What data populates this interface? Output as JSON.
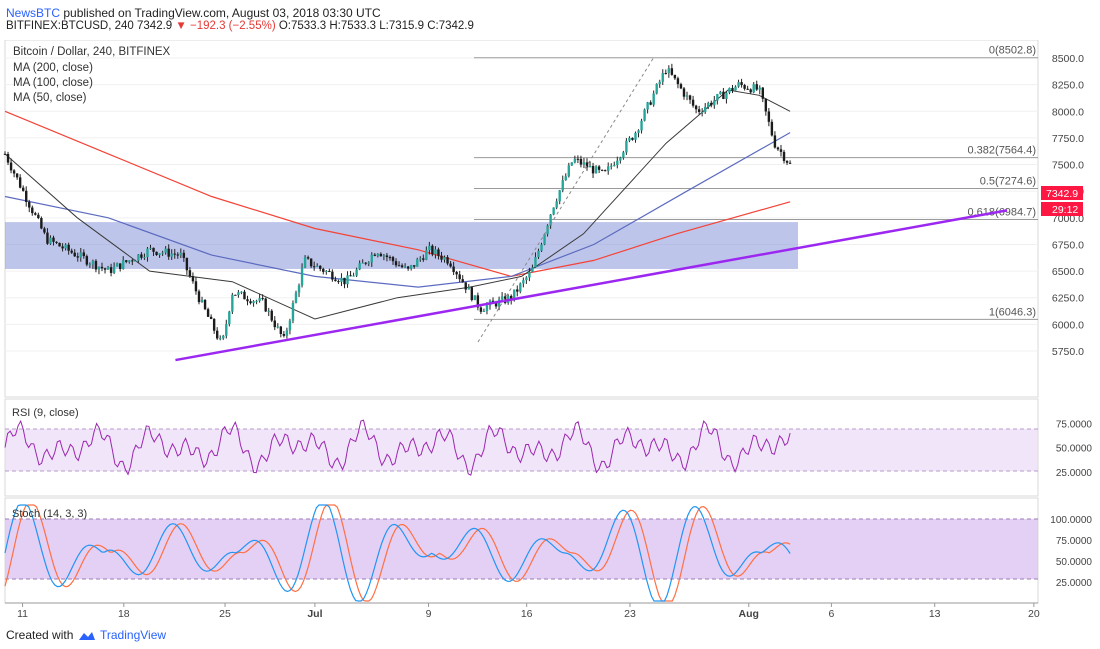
{
  "header": {
    "brand": "NewsBTC",
    "published": " published on TradingView.com, August 03, 2018 03:30 UTC",
    "symbol": "BITFINEX:BTCUSD, 240",
    "last": "7342.9",
    "change": "▼ −192.3 (−2.55%)",
    "ohlc": "O:7533.3 H:7533.3 L:7315.9 C:7342.9"
  },
  "legend": {
    "title": "Bitcoin / Dollar, 240, BITFINEX",
    "ma200": "MA (200, close)",
    "ma100": "MA (100, close)",
    "ma50": "MA (50, close)"
  },
  "price_badges": {
    "last": "7342.9",
    "countdown": "29:12"
  },
  "rsi_label": "RSI (9, close)",
  "stoch_label": "Stoch (14, 3, 3)",
  "footer": {
    "created": "Created with",
    "brand": "TradingView"
  },
  "colors": {
    "up": "#26a69a",
    "down": "#1b1b1b",
    "ma200": "#f44336",
    "ma100": "#5c6bc0",
    "ma50": "#3a3a3a",
    "trendline": "#9c27f0",
    "zone": "#8896d8",
    "rsi": "#9c27b0",
    "stoch_k": "#2196f3",
    "stoch_d": "#ff7043"
  },
  "chart_data": {
    "type": "line",
    "price_axis": [
      "8500.0",
      "8250.0",
      "8000.0",
      "7750.0",
      "7500.0",
      "7250.0",
      "7000.0",
      "6750.0",
      "6500.0",
      "6250.0",
      "6000.0",
      "5750.0"
    ],
    "time_axis": [
      "11",
      "18",
      "25",
      "Jul",
      "9",
      "16",
      "23",
      "Aug",
      "6",
      "13",
      "20"
    ],
    "fib_levels": [
      {
        "label": "0(8502.8)",
        "value": 8502.8
      },
      {
        "label": "0.382(7564.4)",
        "value": 7564.4
      },
      {
        "label": "0.5(7274.6)",
        "value": 7274.6
      },
      {
        "label": "0.618(6984.7)",
        "value": 6984.7
      },
      {
        "label": "1(6046.3)",
        "value": 6046.3
      }
    ],
    "zone": {
      "low": 6520,
      "high": 6960
    },
    "trendline": [
      {
        "t": 0.165,
        "p": 5665
      },
      {
        "t": 0.97,
        "p": 7070
      }
    ],
    "price_path": [
      [
        0,
        7600
      ],
      [
        0.04,
        6800
      ],
      [
        0.06,
        6700
      ],
      [
        0.1,
        6500
      ],
      [
        0.14,
        6700
      ],
      [
        0.17,
        6650
      ],
      [
        0.19,
        6200
      ],
      [
        0.21,
        5800
      ],
      [
        0.22,
        6300
      ],
      [
        0.25,
        6200
      ],
      [
        0.27,
        5850
      ],
      [
        0.29,
        6600
      ],
      [
        0.33,
        6400
      ],
      [
        0.36,
        6700
      ],
      [
        0.39,
        6500
      ],
      [
        0.41,
        6700
      ],
      [
        0.43,
        6600
      ],
      [
        0.45,
        6300
      ],
      [
        0.46,
        6150
      ],
      [
        0.49,
        6250
      ],
      [
        0.51,
        6500
      ],
      [
        0.53,
        7100
      ],
      [
        0.55,
        7550
      ],
      [
        0.58,
        7400
      ],
      [
        0.61,
        7800
      ],
      [
        0.64,
        8400
      ],
      [
        0.67,
        8000
      ],
      [
        0.71,
        8250
      ],
      [
        0.73,
        8200
      ],
      [
        0.745,
        7700
      ],
      [
        0.76,
        7500
      ]
    ],
    "ma200_path": [
      [
        0,
        8000
      ],
      [
        0.1,
        7600
      ],
      [
        0.2,
        7200
      ],
      [
        0.3,
        6900
      ],
      [
        0.4,
        6700
      ],
      [
        0.49,
        6450
      ],
      [
        0.57,
        6600
      ],
      [
        0.65,
        6850
      ],
      [
        0.76,
        7150
      ]
    ],
    "ma100_path": [
      [
        0,
        7200
      ],
      [
        0.1,
        7000
      ],
      [
        0.2,
        6650
      ],
      [
        0.3,
        6450
      ],
      [
        0.4,
        6350
      ],
      [
        0.49,
        6450
      ],
      [
        0.57,
        6750
      ],
      [
        0.66,
        7250
      ],
      [
        0.76,
        7800
      ]
    ],
    "ma50_path": [
      [
        0,
        7600
      ],
      [
        0.07,
        7000
      ],
      [
        0.14,
        6500
      ],
      [
        0.22,
        6400
      ],
      [
        0.3,
        6050
      ],
      [
        0.38,
        6250
      ],
      [
        0.45,
        6350
      ],
      [
        0.5,
        6450
      ],
      [
        0.56,
        6850
      ],
      [
        0.64,
        7700
      ],
      [
        0.7,
        8200
      ],
      [
        0.73,
        8150
      ],
      [
        0.76,
        8000
      ]
    ],
    "rsi_axis": [
      "75.0000",
      "50.0000",
      "25.0000"
    ],
    "stoch_axis": [
      "100.0000",
      "75.0000",
      "50.0000",
      "25.0000"
    ]
  }
}
